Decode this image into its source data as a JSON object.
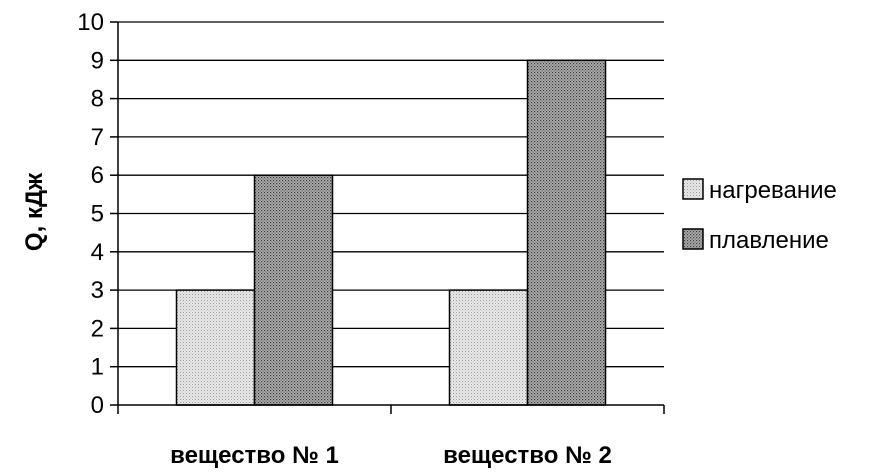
{
  "chart_data": {
    "type": "bar",
    "title": "",
    "xlabel": "",
    "ylabel": "Q, кДж",
    "ylim": [
      0,
      10
    ],
    "yticks": [
      0,
      1,
      2,
      3,
      4,
      5,
      6,
      7,
      8,
      9,
      10
    ],
    "grid": true,
    "legend_position": "right",
    "categories": [
      "вещество № 1",
      "вещество № 2"
    ],
    "series": [
      {
        "name": "нагревание",
        "values": [
          3,
          3
        ],
        "pattern": "light-dotted"
      },
      {
        "name": "плавление",
        "values": [
          6,
          9
        ],
        "pattern": "dark-dotted"
      }
    ]
  }
}
